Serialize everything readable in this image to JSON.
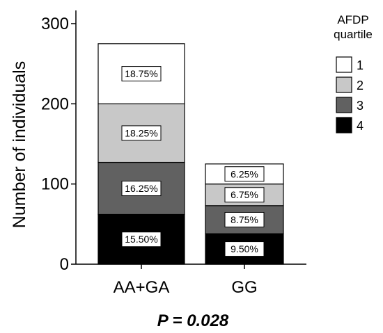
{
  "chart_data": {
    "type": "bar",
    "stacked": true,
    "categories": [
      "AA+GA",
      "GG"
    ],
    "ylabel": "Number of individuals",
    "ylim": [
      0,
      300
    ],
    "yticks": [
      0,
      100,
      200,
      300
    ],
    "legend": {
      "title_lines": [
        "AFDP",
        "quartile"
      ],
      "placement": "top-right"
    },
    "series": [
      {
        "name": "4",
        "color": "#000000",
        "values": [
          62,
          38
        ],
        "labels": [
          "15.50%",
          "9.50%"
        ]
      },
      {
        "name": "3",
        "color": "#616161",
        "values": [
          65,
          35
        ],
        "labels": [
          "16.25%",
          "8.75%"
        ]
      },
      {
        "name": "2",
        "color": "#c8c8c8",
        "values": [
          73,
          27
        ],
        "labels": [
          "18.25%",
          "6.75%"
        ]
      },
      {
        "name": "1",
        "color": "#ffffff",
        "values": [
          75,
          25
        ],
        "labels": [
          "18.75%",
          "6.25%"
        ]
      }
    ],
    "annotation": "P = 0.028"
  }
}
